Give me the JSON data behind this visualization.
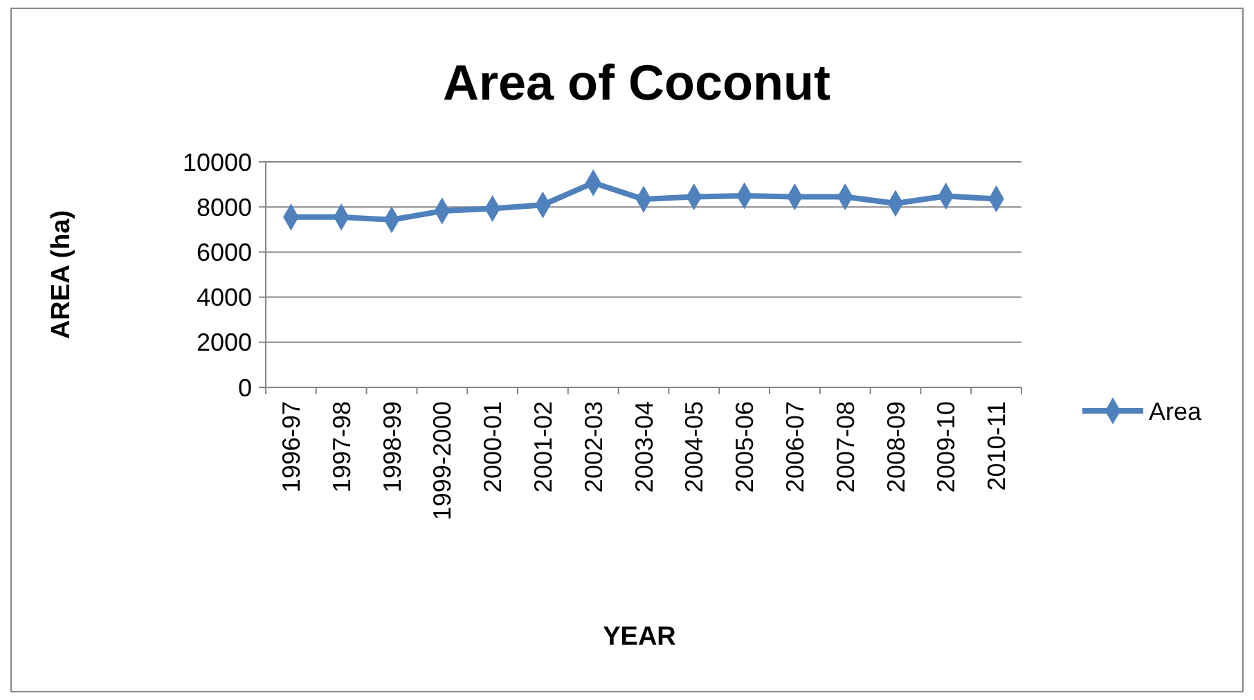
{
  "chart_data": {
    "type": "line",
    "title": "Area of Coconut",
    "xlabel": "YEAR",
    "ylabel": "AREA (ha)",
    "categories": [
      "1996-97",
      "1997-98",
      "1998-99",
      "1999-2000",
      "2000-01",
      "2001-02",
      "2002-03",
      "2003-04",
      "2004-05",
      "2005-06",
      "2006-07",
      "2007-08",
      "2008-09",
      "2009-10",
      "2010-11"
    ],
    "series": [
      {
        "name": "Area",
        "color": "#4f81bd",
        "values": [
          7550,
          7550,
          7430,
          7820,
          7930,
          8090,
          9070,
          8340,
          8450,
          8500,
          8450,
          8450,
          8160,
          8480,
          8360
        ]
      }
    ],
    "ylim": [
      0,
      10000
    ],
    "yticks": [
      0,
      2000,
      4000,
      6000,
      8000,
      10000
    ],
    "grid": "y",
    "legend": "right",
    "marker": "diamond",
    "line_style": "solid"
  }
}
